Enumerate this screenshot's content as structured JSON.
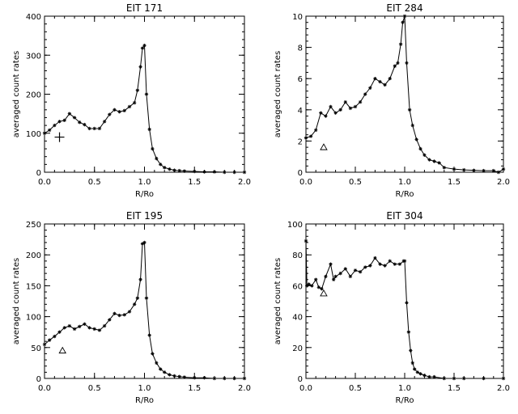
{
  "chart_data": [
    {
      "type": "line",
      "title": "EIT 171",
      "xlabel": "R/Ro",
      "ylabel": "averaged count rates",
      "xlim": [
        0,
        2
      ],
      "ylim": [
        0,
        400
      ],
      "xticks": [
        "0.0",
        "0.5",
        "1.0",
        "1.5",
        "2.0"
      ],
      "yticks": [
        "0",
        "100",
        "200",
        "300",
        "400"
      ],
      "marker": "star",
      "annotation": {
        "symbol": "plus",
        "x": 0.15,
        "y": 90
      },
      "series": [
        {
          "x": [
            0.0,
            0.05,
            0.1,
            0.15,
            0.2,
            0.25,
            0.3,
            0.35,
            0.4,
            0.45,
            0.5,
            0.55,
            0.6,
            0.65,
            0.7,
            0.75,
            0.8,
            0.85,
            0.9,
            0.93,
            0.96,
            0.98,
            1.0,
            1.02,
            1.05,
            1.08,
            1.12,
            1.16,
            1.2,
            1.25,
            1.3,
            1.35,
            1.4,
            1.5,
            1.6,
            1.7,
            1.8,
            1.9,
            2.0
          ],
          "y": [
            100,
            108,
            120,
            130,
            133,
            150,
            140,
            128,
            122,
            112,
            112,
            112,
            130,
            148,
            160,
            155,
            158,
            168,
            178,
            210,
            270,
            318,
            325,
            200,
            110,
            60,
            35,
            20,
            12,
            8,
            5,
            4,
            3,
            2,
            1,
            1,
            0,
            0,
            0
          ]
        }
      ]
    },
    {
      "type": "line",
      "title": "EIT 284",
      "xlabel": "R/Ro",
      "ylabel": "averaged count rates",
      "xlim": [
        0,
        2
      ],
      "ylim": [
        0,
        10
      ],
      "xticks": [
        "0.0",
        "0.5",
        "1.0",
        "1.5",
        "2.0"
      ],
      "yticks": [
        "0",
        "2",
        "4",
        "6",
        "8",
        "10"
      ],
      "marker": "star",
      "annotation": {
        "symbol": "triangle",
        "x": 0.18,
        "y": 1.6
      },
      "series": [
        {
          "x": [
            0.0,
            0.05,
            0.1,
            0.15,
            0.2,
            0.25,
            0.3,
            0.35,
            0.4,
            0.45,
            0.5,
            0.55,
            0.6,
            0.65,
            0.7,
            0.75,
            0.8,
            0.85,
            0.9,
            0.93,
            0.96,
            0.98,
            1.0,
            1.02,
            1.05,
            1.08,
            1.12,
            1.16,
            1.2,
            1.25,
            1.3,
            1.35,
            1.4,
            1.5,
            1.6,
            1.7,
            1.8,
            1.9,
            1.95,
            2.0
          ],
          "y": [
            2.2,
            2.3,
            2.7,
            3.8,
            3.6,
            4.2,
            3.8,
            4.0,
            4.5,
            4.1,
            4.2,
            4.5,
            5.0,
            5.4,
            6.0,
            5.8,
            5.6,
            6.0,
            6.8,
            7.0,
            8.2,
            9.6,
            10.0,
            7.0,
            4.0,
            3.0,
            2.1,
            1.5,
            1.1,
            0.8,
            0.7,
            0.6,
            0.3,
            0.2,
            0.15,
            0.12,
            0.1,
            0.1,
            0.0,
            0.2
          ]
        }
      ]
    },
    {
      "type": "line",
      "title": "EIT 195",
      "xlabel": "R/Ro",
      "ylabel": "averaged count rates",
      "xlim": [
        0,
        2
      ],
      "ylim": [
        0,
        250
      ],
      "xticks": [
        "0.0",
        "0.5",
        "1.0",
        "1.5",
        "2.0"
      ],
      "yticks": [
        "0",
        "50",
        "100",
        "150",
        "200",
        "250"
      ],
      "marker": "star",
      "annotation": {
        "symbol": "triangle",
        "x": 0.18,
        "y": 45
      },
      "series": [
        {
          "x": [
            0.0,
            0.05,
            0.1,
            0.15,
            0.2,
            0.25,
            0.3,
            0.35,
            0.4,
            0.45,
            0.5,
            0.55,
            0.6,
            0.65,
            0.7,
            0.75,
            0.8,
            0.85,
            0.9,
            0.93,
            0.96,
            0.98,
            1.0,
            1.02,
            1.05,
            1.08,
            1.12,
            1.16,
            1.2,
            1.25,
            1.3,
            1.35,
            1.4,
            1.5,
            1.6,
            1.7,
            1.8,
            1.9,
            2.0
          ],
          "y": [
            55,
            62,
            68,
            75,
            82,
            85,
            80,
            84,
            88,
            82,
            80,
            78,
            85,
            95,
            105,
            102,
            103,
            108,
            120,
            130,
            160,
            218,
            220,
            130,
            70,
            40,
            25,
            15,
            10,
            6,
            4,
            3,
            2,
            1,
            1,
            0,
            0,
            0,
            0
          ]
        }
      ]
    },
    {
      "type": "line",
      "title": "EIT 304",
      "xlabel": "R/Ro",
      "ylabel": "averaged count rates",
      "xlim": [
        0,
        2
      ],
      "ylim": [
        0,
        100
      ],
      "xticks": [
        "0.0",
        "0.5",
        "1.0",
        "1.5",
        "2.0"
      ],
      "yticks": [
        "0",
        "20",
        "40",
        "60",
        "80",
        "100"
      ],
      "marker": "star",
      "annotation": {
        "symbol": "triangle",
        "x": 0.18,
        "y": 55
      },
      "series": [
        {
          "x": [
            0.0,
            0.01,
            0.03,
            0.06,
            0.1,
            0.13,
            0.16,
            0.2,
            0.25,
            0.28,
            0.3,
            0.35,
            0.4,
            0.45,
            0.5,
            0.55,
            0.6,
            0.65,
            0.7,
            0.75,
            0.8,
            0.85,
            0.9,
            0.95,
            0.99,
            1.0,
            1.02,
            1.04,
            1.06,
            1.08,
            1.1,
            1.13,
            1.16,
            1.2,
            1.25,
            1.3,
            1.4,
            1.5,
            1.6,
            1.8,
            2.0
          ],
          "y": [
            89,
            60,
            61,
            60,
            64,
            59,
            58,
            66,
            74,
            64,
            66,
            68,
            71,
            66,
            70,
            69,
            72,
            73,
            78,
            74,
            73,
            76,
            74,
            74,
            76,
            76,
            49,
            30,
            18,
            10,
            6,
            4,
            3,
            2,
            1,
            1,
            0,
            0,
            0,
            0,
            0
          ]
        }
      ]
    }
  ]
}
